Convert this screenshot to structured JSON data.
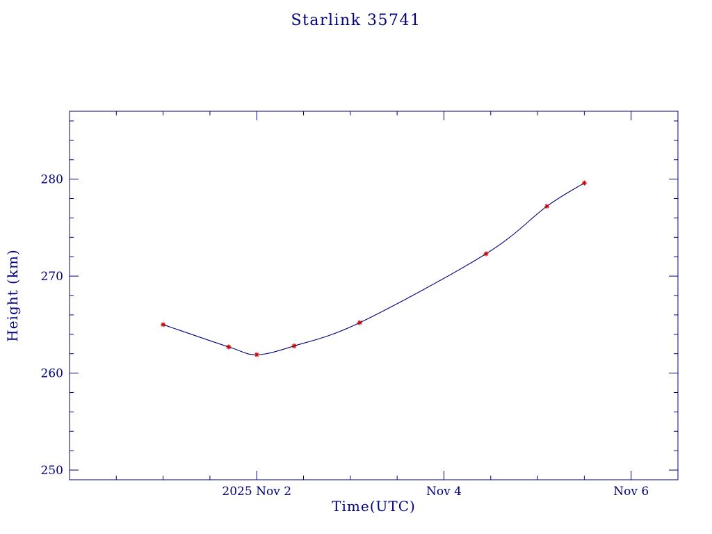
{
  "chart_data": {
    "type": "line",
    "title": "Starlink 35741",
    "xlabel": "Time(UTC)",
    "ylabel": "Height (km)",
    "x_unit": "day of November 2025 (UTC); 2.0 = 2025 Nov 2 00:00",
    "y_unit": "km",
    "xlim": [
      0,
      6.5
    ],
    "ylim": [
      249,
      287
    ],
    "grid": false,
    "legend": "none",
    "x_major_ticks": [
      {
        "value": 2,
        "label": "2025 Nov 2"
      },
      {
        "value": 4,
        "label": "Nov 4"
      },
      {
        "value": 6,
        "label": "Nov 6"
      }
    ],
    "x_minor_step": 0.5,
    "y_major_ticks": [
      {
        "value": 250,
        "label": "250"
      },
      {
        "value": 260,
        "label": "260"
      },
      {
        "value": 270,
        "label": "270"
      },
      {
        "value": 280,
        "label": "280"
      }
    ],
    "y_minor_step": 2,
    "colors": {
      "axis": "#000080",
      "text": "#000080",
      "line": "#000080",
      "marker": "#cc0000",
      "background": "#ffffff"
    },
    "series": [
      {
        "name": "orbit-height",
        "marker": "asterisk",
        "line_color": "#000080",
        "marker_color": "#cc0000",
        "points": [
          {
            "x": 1.0,
            "y": 265.0
          },
          {
            "x": 1.7,
            "y": 262.7
          },
          {
            "x": 2.0,
            "y": 261.9
          },
          {
            "x": 2.4,
            "y": 262.8
          },
          {
            "x": 3.1,
            "y": 265.2
          },
          {
            "x": 4.45,
            "y": 272.3
          },
          {
            "x": 5.1,
            "y": 277.2
          },
          {
            "x": 5.5,
            "y": 279.6
          }
        ]
      }
    ]
  }
}
